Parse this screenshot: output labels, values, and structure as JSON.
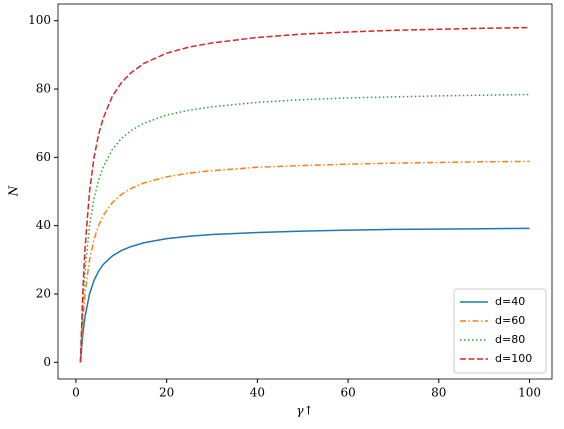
{
  "chart_data": {
    "type": "line",
    "x_label": "γ↑",
    "y_label": "N",
    "x": [
      1,
      1.5,
      2,
      3,
      4,
      5,
      6,
      8,
      10,
      12,
      15,
      20,
      25,
      30,
      40,
      50,
      60,
      70,
      80,
      90,
      100
    ],
    "series": [
      {
        "name": "d=40",
        "color": "#1f77b4",
        "linestyle": "solid",
        "values": [
          0,
          8,
          13.3,
          20,
          24,
          26.7,
          28.6,
          31.1,
          32.7,
          33.8,
          35,
          36.2,
          36.9,
          37.4,
          38,
          38.4,
          38.7,
          38.9,
          39,
          39.1,
          39.2
        ]
      },
      {
        "name": "d=60",
        "color": "#ff7f0e",
        "linestyle": "dashdot",
        "values": [
          0,
          12,
          20,
          30,
          36,
          40,
          42.9,
          46.7,
          49.1,
          50.8,
          52.5,
          54.3,
          55.4,
          56.1,
          57.1,
          57.6,
          58,
          58.3,
          58.5,
          58.7,
          58.8
        ]
      },
      {
        "name": "d=80",
        "color": "#2ca02c",
        "linestyle": "dotted",
        "values": [
          0,
          16,
          26.7,
          40,
          48,
          53.3,
          57.1,
          62.2,
          65.5,
          67.7,
          70,
          72.4,
          73.8,
          74.8,
          76.1,
          76.9,
          77.4,
          77.7,
          78,
          78.2,
          78.4
        ]
      },
      {
        "name": "d=100",
        "color": "#d62728",
        "linestyle": "dashed",
        "values": [
          0,
          20,
          33.3,
          50,
          60,
          66.7,
          71.4,
          77.8,
          81.8,
          84.6,
          87.5,
          90.5,
          92.3,
          93.5,
          95.1,
          96.1,
          96.7,
          97.2,
          97.5,
          97.8,
          98
        ]
      }
    ],
    "xlim": [
      -3.95,
      104.95
    ],
    "ylim": [
      -4.9,
      104.9
    ],
    "xticks": [
      0,
      20,
      40,
      60,
      80,
      100
    ],
    "yticks": [
      0,
      20,
      40,
      60,
      80,
      100
    ],
    "grid": false,
    "legend": "lower right"
  }
}
